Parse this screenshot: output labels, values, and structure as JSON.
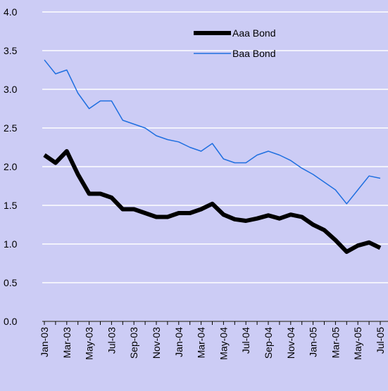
{
  "chart_data": {
    "type": "line",
    "categories": [
      "Jan-03",
      null,
      "Mar-03",
      null,
      "May-03",
      null,
      "Jul-03",
      null,
      "Sep-03",
      null,
      "Nov-03",
      null,
      "Jan-04",
      null,
      "Mar-04",
      null,
      "May-04",
      null,
      "Jul-04",
      null,
      "Sep-04",
      null,
      "Nov-04",
      null,
      "Jan-05",
      null,
      "Mar-05",
      null,
      "May-05",
      null,
      "Jul-05"
    ],
    "series": [
      {
        "name": "Aaa Bond",
        "color": "#000000",
        "values": [
          2.15,
          2.05,
          2.2,
          1.9,
          1.65,
          1.65,
          1.6,
          1.45,
          1.45,
          1.4,
          1.35,
          1.35,
          1.4,
          1.4,
          1.45,
          1.52,
          1.38,
          1.32,
          1.3,
          1.33,
          1.37,
          1.33,
          1.38,
          1.35,
          1.25,
          1.18,
          1.05,
          0.9,
          0.98,
          1.02,
          0.95
        ]
      },
      {
        "name": "Baa Bond",
        "color": "#1f6fe0",
        "values": [
          3.38,
          3.2,
          3.25,
          2.95,
          2.75,
          2.85,
          2.85,
          2.6,
          2.55,
          2.5,
          2.4,
          2.35,
          2.32,
          2.25,
          2.2,
          2.3,
          2.1,
          2.05,
          2.05,
          2.15,
          2.2,
          2.15,
          2.08,
          1.98,
          1.9,
          1.8,
          1.7,
          1.52,
          1.7,
          1.88,
          1.85
        ]
      }
    ],
    "ylim": [
      0,
      4
    ],
    "yticks": [
      {
        "value": 0,
        "label": "0.0"
      },
      0.5,
      {
        "value": 1,
        "label": "1.0"
      },
      1.5,
      {
        "value": 2,
        "label": "2.0"
      },
      2.5,
      {
        "value": 3,
        "label": "3.0"
      },
      3.5,
      {
        "value": 4,
        "label": "4.0"
      }
    ],
    "grid": true
  }
}
